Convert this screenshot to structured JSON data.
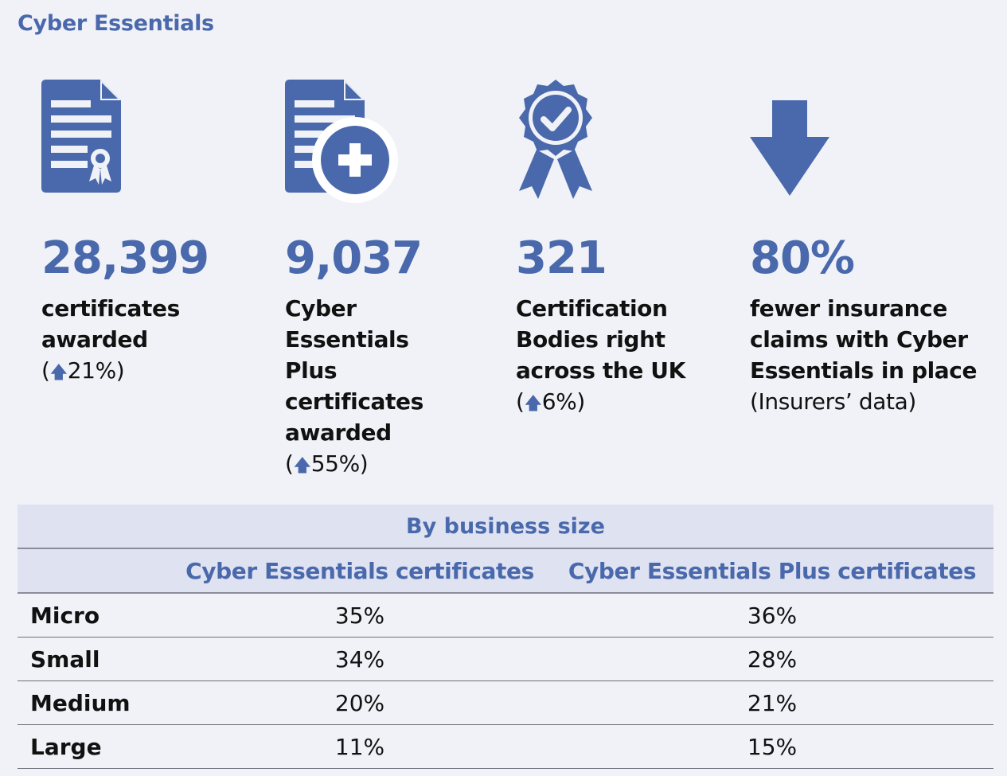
{
  "header": {
    "title": "Cyber Essentials"
  },
  "stats": [
    {
      "icon": "certificate-icon",
      "value": "28,399",
      "description": "certificates awarded",
      "change": "21%)",
      "change_prefix": "("
    },
    {
      "icon": "certificate-plus-icon",
      "value": "9,037",
      "description": "Cyber Essentials Plus certificates awarded",
      "change": "55%)",
      "change_prefix": "("
    },
    {
      "icon": "award-rosette-icon",
      "value": "321",
      "description": "Certification Bodies right across the UK",
      "change": "6%)",
      "change_prefix": "("
    },
    {
      "icon": "arrow-down-icon",
      "value": "80%",
      "description": "fewer insurance claims with Cyber Essentials in place",
      "note": "(Insurers’ data)"
    }
  ],
  "colors": {
    "accent": "#4a69ac",
    "header_bg": "#dfe2f1",
    "page_bg": "#f1f2f7"
  },
  "table": {
    "group_header": "By business size",
    "columns": [
      "",
      "Cyber Essentials certificates",
      "Cyber Essentials Plus certificates"
    ],
    "rows": [
      {
        "size": "Micro",
        "ce": "35%",
        "ce_plus": "36%"
      },
      {
        "size": "Small",
        "ce": "34%",
        "ce_plus": "28%"
      },
      {
        "size": "Medium",
        "ce": "20%",
        "ce_plus": "21%"
      },
      {
        "size": "Large",
        "ce": "11%",
        "ce_plus": "15%"
      }
    ]
  }
}
